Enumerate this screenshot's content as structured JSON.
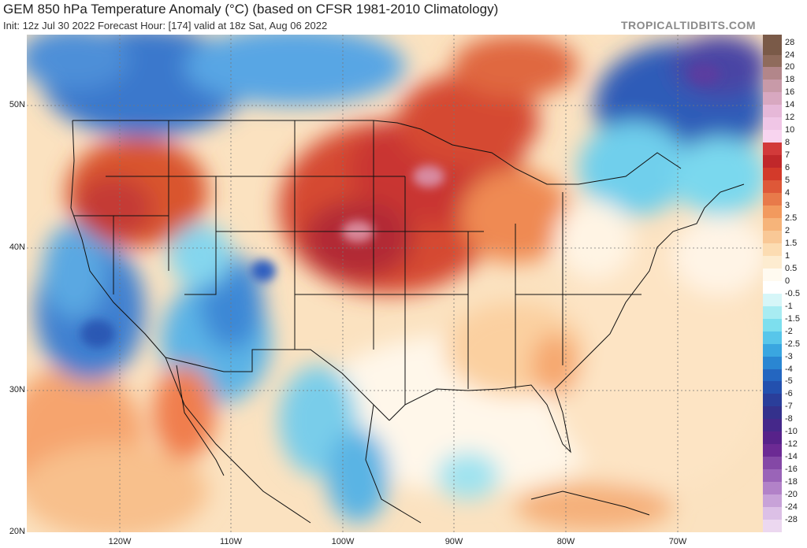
{
  "header": {
    "title": "GEM 850 hPa Temperature Anomaly (°C) (based on CFSR 1981-2010 Climatology)",
    "subtitle": "Init: 12z Jul 30 2022   Forecast Hour: [174]   valid at 18z Sat, Aug 06 2022",
    "watermark": "TROPICALTIDBITS.COM"
  },
  "map": {
    "lat_labels": [
      "50N",
      "40N",
      "30N",
      "20N"
    ],
    "lon_labels": [
      "120W",
      "110W",
      "100W",
      "90W",
      "80W",
      "70W"
    ]
  },
  "legend": {
    "labels": [
      "28",
      "24",
      "20",
      "18",
      "16",
      "14",
      "12",
      "10",
      "8",
      "7",
      "6",
      "5",
      "4",
      "3",
      "2.5",
      "2",
      "1.5",
      "1",
      "0.5",
      "0",
      "-0.5",
      "-1",
      "-1.5",
      "-2",
      "-2.5",
      "-3",
      "-4",
      "-5",
      "-6",
      "-7",
      "-8",
      "-10",
      "-12",
      "-14",
      "-16",
      "-18",
      "-20",
      "-24",
      "-28"
    ],
    "colors": [
      "#7a5a48",
      "#8f6b5c",
      "#b2868a",
      "#c89aa8",
      "#d8a8c0",
      "#e6b8d8",
      "#f0c6e6",
      "#f8d4ef",
      "#d23a3a",
      "#c0282a",
      "#d33a2a",
      "#de5838",
      "#e87a4a",
      "#f29a5e",
      "#f6b47a",
      "#f9c896",
      "#fcdcb2",
      "#fdecd0",
      "#fffaf0",
      "#ffffff",
      "#d6f6f8",
      "#a8ecf2",
      "#7ddfee",
      "#58c6ea",
      "#3aa6e0",
      "#2a86d2",
      "#2466c0",
      "#2350ae",
      "#2a3e9a",
      "#34318c",
      "#45288a",
      "#57228a",
      "#6c2a94",
      "#8448a6",
      "#9a64b8",
      "#b282c8",
      "#c8a2d8",
      "#dcc0e6",
      "#ecd8f0"
    ]
  }
}
